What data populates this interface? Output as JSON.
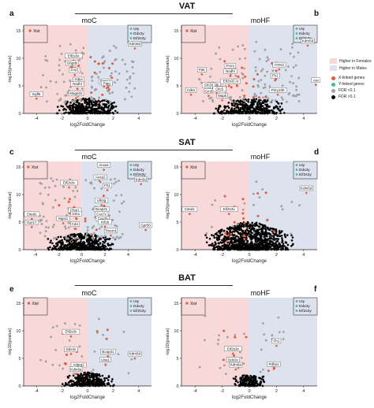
{
  "colors": {
    "female_bg": "#f7d9da",
    "male_bg": "#dde3ee",
    "x_linked": "#e05a40",
    "y_linked": "#4bb3a8",
    "fdr_sig": "#a0a0a0",
    "fdr_ns": "#000000"
  },
  "legend": {
    "items": [
      {
        "label": "Higher in Females",
        "kind": "swatch",
        "color": "#f7d9da"
      },
      {
        "label": "Higher in Males",
        "kind": "swatch",
        "color": "#dde3ee"
      },
      {
        "label": "X-linked genes",
        "kind": "dot",
        "color": "#e05a40"
      },
      {
        "label": "Y-linked genes",
        "kind": "dot",
        "color": "#4bb3a8"
      },
      {
        "label": "FDR <0.1",
        "kind": "dot",
        "color": "#a0a0a0"
      },
      {
        "label": "FDR >0.1",
        "kind": "dot",
        "color": "#000000"
      }
    ]
  },
  "sections": [
    {
      "title": "VAT"
    },
    {
      "title": "SAT"
    },
    {
      "title": "BAT"
    }
  ],
  "chart_data": [
    {
      "type": "scatter",
      "panel": "a",
      "title": "moC",
      "section": "VAT",
      "xlabel": "log2FoldChange",
      "ylabel": "-log10(pvalue)",
      "xlim": [
        -5,
        5
      ],
      "ylim": [
        0,
        16
      ],
      "xticks": [
        -4,
        -2,
        0,
        2,
        4
      ],
      "yticks": [
        0,
        5,
        10,
        15
      ],
      "xist": {
        "x": -4.5,
        "y": 15
      },
      "y_linked_box": [
        "Uty",
        "Ddx3y",
        "Eif2s3y"
      ],
      "labels": [
        {
          "text": "Eif2s3x",
          "x": -1.1,
          "y": 10.3
        },
        {
          "text": "G6pdx",
          "x": -1.2,
          "y": 9.0
        },
        {
          "text": "Fmr1",
          "x": -1.0,
          "y": 7.7
        },
        {
          "text": "Pdk4",
          "x": -0.7,
          "y": 6.0
        },
        {
          "text": "Nsdhl",
          "x": -0.8,
          "y": 5.2
        },
        {
          "text": "Maged1",
          "x": -0.9,
          "y": 3.5
        },
        {
          "text": "Egfl6",
          "x": -4.0,
          "y": 3.4
        },
        {
          "text": "Kdm5d",
          "x": 3.7,
          "y": 12.5
        },
        {
          "text": "Fmr1",
          "x": 1.3,
          "y": 5.7
        },
        {
          "text": "Pigg",
          "x": 1.5,
          "y": 5.3
        }
      ]
    },
    {
      "type": "scatter",
      "panel": "b",
      "title": "moHF",
      "section": "VAT",
      "xlabel": "log2FoldChange",
      "ylabel": "-log10(pvalue)",
      "xlim": [
        -5,
        5
      ],
      "ylim": [
        0,
        16
      ],
      "xticks": [
        -4,
        -2,
        0,
        2,
        4
      ],
      "yticks": [
        0,
        5,
        10,
        15
      ],
      "xist": {
        "x": -4.6,
        "y": 15
      },
      "y_linked_box": [
        "Uty",
        "Ddx3y",
        "Eif2s3y"
      ],
      "labels": [
        {
          "text": "Kdm5d",
          "x": 4.3,
          "y": 13
        },
        {
          "text": "Anxa1",
          "x": 2.2,
          "y": 8.7
        },
        {
          "text": "Fh1",
          "x": 1.9,
          "y": 6.7
        },
        {
          "text": "Are",
          "x": 4.9,
          "y": 5.9
        },
        {
          "text": "Pak",
          "x": -3.5,
          "y": 7.8
        },
        {
          "text": "Fmr1",
          "x": -1.4,
          "y": 8.5
        },
        {
          "text": "Nsdhl",
          "x": -1.4,
          "y": 7.5
        },
        {
          "text": "Eif2s3x",
          "x": -1.5,
          "y": 5.7
        },
        {
          "text": "Ar",
          "x": -0.9,
          "y": 5.7
        },
        {
          "text": "Ptgds",
          "x": -2.6,
          "y": 5.1
        },
        {
          "text": "Eda2r",
          "x": -2.4,
          "y": 4.4
        },
        {
          "text": "Slc28",
          "x": -3.0,
          "y": 5.0
        },
        {
          "text": "Gm5",
          "x": -3.0,
          "y": 3.9
        },
        {
          "text": "Cdkn",
          "x": -4.3,
          "y": 4.1
        },
        {
          "text": "Clic5",
          "x": -2.2,
          "y": 4.3
        },
        {
          "text": "Mapk",
          "x": -2.0,
          "y": 3.1
        },
        {
          "text": "P2ry10b",
          "x": 2.1,
          "y": 4.1
        }
      ]
    },
    {
      "type": "scatter",
      "panel": "c",
      "title": "moC",
      "section": "SAT",
      "xlabel": "log2FoldChange",
      "ylabel": "-log10(pvalue)",
      "xlim": [
        -5,
        6
      ],
      "ylim": [
        0,
        16
      ],
      "xticks": [
        -4,
        -2,
        0,
        2,
        4
      ],
      "yticks": [
        0,
        5,
        10,
        15
      ],
      "xist": {
        "x": -4.6,
        "y": 15
      },
      "y_linked_box": [
        "Uty",
        "Ddx3y",
        "Eif2s3y"
      ],
      "labels": [
        {
          "text": "Anxa1",
          "x": 1.9,
          "y": 15.2
        },
        {
          "text": "Anxa2",
          "x": 1.6,
          "y": 13.0
        },
        {
          "text": "Eif2s3x",
          "x": -1.1,
          "y": 12.0
        },
        {
          "text": "Fh1",
          "x": 2.2,
          "y": 11.5
        },
        {
          "text": "Kdm5d",
          "x": 5.1,
          "y": 12.6
        },
        {
          "text": "Cited1",
          "x": -4.3,
          "y": 6.3
        },
        {
          "text": "Chst1",
          "x": -0.6,
          "y": 7.0
        },
        {
          "text": "Grb1",
          "x": -0.5,
          "y": 6.4
        },
        {
          "text": "Gpr17",
          "x": -4.3,
          "y": 4.8
        },
        {
          "text": "Idh3g",
          "x": 1.7,
          "y": 8.8
        },
        {
          "text": "Bcap31",
          "x": 1.7,
          "y": 7.2
        },
        {
          "text": "Cox7c",
          "x": 1.7,
          "y": 6.3
        },
        {
          "text": "Cox7b",
          "x": 1.8,
          "y": 5.5
        },
        {
          "text": "Kif1b",
          "x": 2.0,
          "y": 4.9
        },
        {
          "text": "Tmem1",
          "x": 2.5,
          "y": 3.3
        },
        {
          "text": "Gpr50",
          "x": 5.5,
          "y": 4.3
        },
        {
          "text": "Mgst1",
          "x": -1.6,
          "y": 5.5
        },
        {
          "text": "Cd4",
          "x": -0.6,
          "y": 4.5
        }
      ]
    },
    {
      "type": "scatter",
      "panel": "d",
      "title": "moHF",
      "section": "SAT",
      "xlabel": "log2FoldChange",
      "ylabel": "-log10(pvalue)",
      "xlim": [
        -5,
        5
      ],
      "ylim": [
        0,
        16
      ],
      "xticks": [
        -4,
        -2,
        0,
        2,
        4
      ],
      "yticks": [
        0,
        5,
        10,
        15
      ],
      "xist": {
        "x": -4.6,
        "y": 15
      },
      "y_linked_box": [
        "Uty",
        "Ddx3y",
        "Eif2s3y"
      ],
      "labels": [
        {
          "text": "Kdm5d",
          "x": 4.2,
          "y": 11.0
        },
        {
          "text": "Cited1",
          "x": -4.4,
          "y": 7.2
        },
        {
          "text": "Eif2s3x",
          "x": -1.5,
          "y": 7.2
        }
      ]
    },
    {
      "type": "scatter",
      "panel": "e",
      "title": "moC",
      "section": "BAT",
      "xlabel": "log2FoldChange",
      "ylabel": "-log10(pvalue)",
      "xlim": [
        -5,
        5
      ],
      "ylim": [
        0,
        16
      ],
      "xticks": [
        -4,
        -2,
        0,
        2,
        4
      ],
      "yticks": [
        0,
        5,
        10,
        15
      ],
      "xist": {
        "x": -4.6,
        "y": 15
      },
      "y_linked_box": [
        "Uty",
        "Ddx3y",
        "Eif2s3y"
      ],
      "labels": [
        {
          "text": "Eif2s3x",
          "x": -1.3,
          "y": 9.7
        },
        {
          "text": "Ddx3x",
          "x": -1.3,
          "y": 6.5
        },
        {
          "text": "Adgrg2",
          "x": -0.7,
          "y": 3.7
        },
        {
          "text": "Kdm6a",
          "x": -0.9,
          "y": 2.9
        },
        {
          "text": "Bcap31",
          "x": 1.6,
          "y": 6.1
        },
        {
          "text": "Kdm5d",
          "x": 3.7,
          "y": 5.7
        },
        {
          "text": "Uba1",
          "x": 1.4,
          "y": 4.6
        }
      ]
    },
    {
      "type": "scatter",
      "panel": "f",
      "title": "moHF",
      "section": "BAT",
      "xlabel": "log2FoldChange",
      "ylabel": "-log10(pvalue)",
      "xlim": [
        -5,
        5
      ],
      "ylim": [
        0,
        16
      ],
      "xticks": [
        -4,
        -2,
        0,
        2,
        4
      ],
      "yticks": [
        0,
        5,
        10,
        15
      ],
      "xist": {
        "x": -4.6,
        "y": 15
      },
      "y_linked_box": [
        "Uty",
        "Ddx3y",
        "Eif2s3y"
      ],
      "labels": [
        {
          "text": "Fh1",
          "x": 2.0,
          "y": 8.0
        },
        {
          "text": "Eif2s3x",
          "x": -1.2,
          "y": 6.6
        },
        {
          "text": "Ddx3x",
          "x": -1.2,
          "y": 4.6
        },
        {
          "text": "Kdm6a",
          "x": -1.0,
          "y": 3.7
        },
        {
          "text": "Pdha1",
          "x": 1.8,
          "y": 3.8
        }
      ]
    }
  ]
}
